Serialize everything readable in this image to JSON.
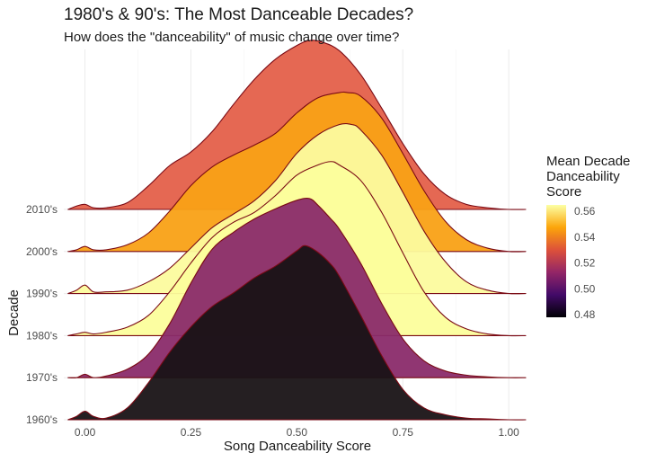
{
  "chart_data": {
    "type": "ridgeline",
    "title": "1980's & 90's: The Most Danceable Decades?",
    "subtitle": "How does the \"danceability\" of music change over time?",
    "xlabel": "Song Danceability Score",
    "ylabel": "Decade",
    "xlim": [
      -0.05,
      1.04
    ],
    "x_ticks": [
      0.0,
      0.25,
      0.5,
      0.75,
      1.0
    ],
    "x_tick_labels": [
      "0.00",
      "0.25",
      "0.50",
      "0.75",
      "1.00"
    ],
    "grid": true,
    "legend_placement": "right",
    "legend": {
      "title": "Mean Decade\nDanceability\nScore",
      "ticks": [
        0.48,
        0.5,
        0.52,
        0.54,
        0.56
      ],
      "tick_labels": [
        "0.48",
        "0.50",
        "0.52",
        "0.54",
        "0.56"
      ],
      "range": [
        0.478,
        0.565
      ],
      "colors": [
        "#000004",
        "#420A68",
        "#932667",
        "#DD513A",
        "#FCA50A",
        "#FCFFA4"
      ]
    },
    "series": [
      {
        "name": "1960's",
        "mean": 0.48,
        "fill": "#191316",
        "density": [
          [
            -0.04,
            0.0
          ],
          [
            -0.02,
            0.02
          ],
          [
            0.0,
            0.05
          ],
          [
            0.02,
            0.02
          ],
          [
            0.05,
            0.01
          ],
          [
            0.1,
            0.07
          ],
          [
            0.15,
            0.22
          ],
          [
            0.2,
            0.4
          ],
          [
            0.25,
            0.55
          ],
          [
            0.3,
            0.67
          ],
          [
            0.35,
            0.75
          ],
          [
            0.4,
            0.84
          ],
          [
            0.45,
            0.91
          ],
          [
            0.5,
            1.0
          ],
          [
            0.52,
            1.03
          ],
          [
            0.55,
            0.99
          ],
          [
            0.58,
            0.92
          ],
          [
            0.6,
            0.85
          ],
          [
            0.65,
            0.62
          ],
          [
            0.7,
            0.38
          ],
          [
            0.75,
            0.18
          ],
          [
            0.8,
            0.07
          ],
          [
            0.85,
            0.03
          ],
          [
            0.9,
            0.01
          ],
          [
            0.95,
            0.005
          ],
          [
            1.0,
            0.0
          ],
          [
            1.04,
            0.0
          ]
        ]
      },
      {
        "name": "1970's",
        "mean": 0.522,
        "fill": "#8A2B6A",
        "density": [
          [
            -0.04,
            0.0
          ],
          [
            -0.02,
            0.0
          ],
          [
            0.0,
            0.02
          ],
          [
            0.02,
            0.0
          ],
          [
            0.05,
            0.01
          ],
          [
            0.1,
            0.05
          ],
          [
            0.15,
            0.14
          ],
          [
            0.2,
            0.32
          ],
          [
            0.25,
            0.56
          ],
          [
            0.3,
            0.76
          ],
          [
            0.35,
            0.86
          ],
          [
            0.4,
            0.94
          ],
          [
            0.45,
            1.0
          ],
          [
            0.5,
            1.05
          ],
          [
            0.53,
            1.06
          ],
          [
            0.55,
            1.02
          ],
          [
            0.58,
            0.94
          ],
          [
            0.6,
            0.88
          ],
          [
            0.65,
            0.68
          ],
          [
            0.7,
            0.44
          ],
          [
            0.75,
            0.23
          ],
          [
            0.8,
            0.1
          ],
          [
            0.85,
            0.04
          ],
          [
            0.9,
            0.015
          ],
          [
            0.95,
            0.005
          ],
          [
            1.0,
            0.0
          ],
          [
            1.04,
            0.0
          ]
        ]
      },
      {
        "name": "1980's",
        "mean": 0.565,
        "fill": "#FCFE9C",
        "density": [
          [
            -0.04,
            0.0
          ],
          [
            -0.02,
            0.01
          ],
          [
            0.0,
            0.02
          ],
          [
            0.02,
            0.01
          ],
          [
            0.05,
            0.02
          ],
          [
            0.1,
            0.05
          ],
          [
            0.15,
            0.12
          ],
          [
            0.2,
            0.26
          ],
          [
            0.25,
            0.43
          ],
          [
            0.3,
            0.58
          ],
          [
            0.35,
            0.67
          ],
          [
            0.4,
            0.73
          ],
          [
            0.45,
            0.83
          ],
          [
            0.5,
            0.95
          ],
          [
            0.55,
            1.01
          ],
          [
            0.58,
            1.03
          ],
          [
            0.6,
            1.01
          ],
          [
            0.65,
            0.92
          ],
          [
            0.7,
            0.73
          ],
          [
            0.75,
            0.49
          ],
          [
            0.8,
            0.26
          ],
          [
            0.85,
            0.11
          ],
          [
            0.9,
            0.04
          ],
          [
            0.95,
            0.01
          ],
          [
            1.0,
            0.0
          ],
          [
            1.04,
            0.0
          ]
        ]
      },
      {
        "name": "1990's",
        "mean": 0.565,
        "fill": "#FCFB9E",
        "density": [
          [
            -0.04,
            0.0
          ],
          [
            -0.02,
            0.02
          ],
          [
            0.0,
            0.05
          ],
          [
            0.02,
            0.01
          ],
          [
            0.05,
            0.01
          ],
          [
            0.1,
            0.02
          ],
          [
            0.15,
            0.07
          ],
          [
            0.2,
            0.15
          ],
          [
            0.25,
            0.27
          ],
          [
            0.3,
            0.39
          ],
          [
            0.35,
            0.47
          ],
          [
            0.4,
            0.55
          ],
          [
            0.45,
            0.67
          ],
          [
            0.5,
            0.83
          ],
          [
            0.55,
            0.94
          ],
          [
            0.6,
            1.0
          ],
          [
            0.63,
            1.0
          ],
          [
            0.65,
            0.97
          ],
          [
            0.7,
            0.82
          ],
          [
            0.75,
            0.6
          ],
          [
            0.8,
            0.37
          ],
          [
            0.85,
            0.19
          ],
          [
            0.9,
            0.07
          ],
          [
            0.95,
            0.02
          ],
          [
            1.0,
            0.0
          ],
          [
            1.04,
            0.0
          ]
        ]
      },
      {
        "name": "2000's",
        "mean": 0.542,
        "fill": "#F9A116",
        "density": [
          [
            -0.04,
            0.0
          ],
          [
            -0.02,
            0.01
          ],
          [
            0.0,
            0.03
          ],
          [
            0.02,
            0.01
          ],
          [
            0.05,
            0.01
          ],
          [
            0.1,
            0.04
          ],
          [
            0.15,
            0.11
          ],
          [
            0.2,
            0.24
          ],
          [
            0.25,
            0.39
          ],
          [
            0.3,
            0.5
          ],
          [
            0.35,
            0.57
          ],
          [
            0.4,
            0.63
          ],
          [
            0.45,
            0.7
          ],
          [
            0.5,
            0.82
          ],
          [
            0.55,
            0.91
          ],
          [
            0.6,
            0.94
          ],
          [
            0.62,
            0.94
          ],
          [
            0.65,
            0.92
          ],
          [
            0.7,
            0.79
          ],
          [
            0.75,
            0.58
          ],
          [
            0.8,
            0.36
          ],
          [
            0.85,
            0.18
          ],
          [
            0.9,
            0.07
          ],
          [
            0.95,
            0.02
          ],
          [
            1.0,
            0.0
          ],
          [
            1.04,
            0.0
          ]
        ]
      },
      {
        "name": "2010's",
        "mean": 0.533,
        "fill": "#E4604A",
        "density": [
          [
            -0.04,
            0.0
          ],
          [
            -0.02,
            0.02
          ],
          [
            0.0,
            0.03
          ],
          [
            0.02,
            0.01
          ],
          [
            0.05,
            0.01
          ],
          [
            0.1,
            0.04
          ],
          [
            0.15,
            0.14
          ],
          [
            0.2,
            0.26
          ],
          [
            0.25,
            0.34
          ],
          [
            0.3,
            0.46
          ],
          [
            0.35,
            0.62
          ],
          [
            0.4,
            0.77
          ],
          [
            0.45,
            0.89
          ],
          [
            0.5,
            0.97
          ],
          [
            0.53,
            1.0
          ],
          [
            0.56,
            0.99
          ],
          [
            0.6,
            0.94
          ],
          [
            0.65,
            0.8
          ],
          [
            0.7,
            0.6
          ],
          [
            0.75,
            0.39
          ],
          [
            0.8,
            0.21
          ],
          [
            0.85,
            0.09
          ],
          [
            0.9,
            0.03
          ],
          [
            0.95,
            0.01
          ],
          [
            1.0,
            0.0
          ],
          [
            1.04,
            0.0
          ]
        ]
      }
    ]
  }
}
